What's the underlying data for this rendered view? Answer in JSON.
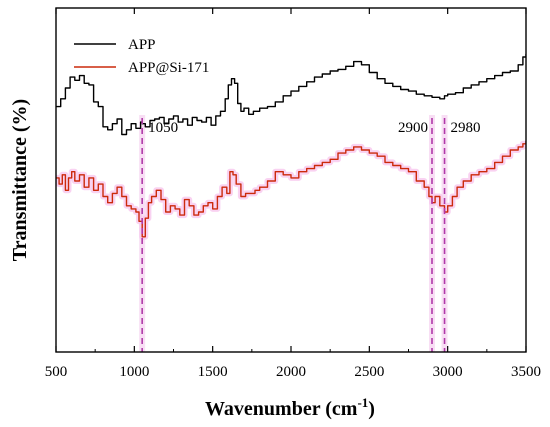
{
  "chart_data": {
    "type": "line",
    "xlabel": "Wavenumber (cm",
    "xlabel_sup": "-1",
    "xlabel_end": ")",
    "ylabel": "Transmittance (%)",
    "xlim": [
      500,
      3500
    ],
    "xticks": [
      "500",
      "1000",
      "1500",
      "2000",
      "2500",
      "3000",
      "3500"
    ],
    "y_ticks_shown": false,
    "grid": false,
    "legend_position": "top-left",
    "annotations": [
      {
        "text": "1050",
        "x": 1050
      },
      {
        "text": "2900",
        "x": 2900
      },
      {
        "text": "2980",
        "x": 2980
      }
    ],
    "series": [
      {
        "name": "APP",
        "color": "#000000",
        "x": [
          500,
          530,
          560,
          590,
          620,
          650,
          680,
          710,
          740,
          770,
          800,
          830,
          860,
          890,
          920,
          950,
          980,
          1010,
          1040,
          1050,
          1070,
          1100,
          1130,
          1160,
          1190,
          1220,
          1250,
          1280,
          1310,
          1340,
          1370,
          1400,
          1430,
          1460,
          1490,
          1520,
          1550,
          1580,
          1600,
          1620,
          1640,
          1660,
          1680,
          1700,
          1730,
          1760,
          1800,
          1850,
          1900,
          1950,
          2000,
          2050,
          2100,
          2150,
          2200,
          2250,
          2300,
          2350,
          2400,
          2450,
          2500,
          2550,
          2600,
          2650,
          2700,
          2750,
          2800,
          2850,
          2900,
          2950,
          2980,
          3000,
          3050,
          3100,
          3150,
          3200,
          3250,
          3300,
          3350,
          3400,
          3450,
          3480,
          3500
        ],
        "y": [
          28,
          33,
          40,
          47,
          45,
          48,
          43,
          42,
          31,
          28,
          15,
          13,
          17,
          20,
          10,
          13,
          17,
          14,
          18,
          17,
          15,
          19,
          20,
          21,
          17,
          20,
          22,
          18,
          20,
          16,
          21,
          19,
          18,
          21,
          16,
          22,
          25,
          33,
          42,
          46,
          43,
          30,
          25,
          27,
          23,
          25,
          27,
          28,
          31,
          35,
          38,
          41,
          44,
          47,
          49,
          51,
          52,
          54,
          57,
          55,
          50,
          46,
          43,
          41,
          39,
          38,
          36,
          35,
          34,
          33,
          35,
          36,
          37,
          40,
          42,
          44,
          46,
          48,
          50,
          51,
          55,
          60,
          62
        ]
      },
      {
        "name": "APP@Si-171",
        "color": "#cc2a0c",
        "x": [
          500,
          520,
          540,
          560,
          580,
          600,
          620,
          650,
          680,
          710,
          740,
          770,
          800,
          830,
          860,
          890,
          920,
          950,
          980,
          1010,
          1030,
          1050,
          1070,
          1090,
          1110,
          1140,
          1170,
          1200,
          1230,
          1260,
          1290,
          1320,
          1350,
          1380,
          1410,
          1440,
          1470,
          1500,
          1530,
          1560,
          1590,
          1610,
          1630,
          1650,
          1680,
          1710,
          1740,
          1770,
          1800,
          1850,
          1900,
          1950,
          2000,
          2050,
          2100,
          2150,
          2200,
          2250,
          2300,
          2350,
          2400,
          2450,
          2500,
          2550,
          2600,
          2650,
          2700,
          2750,
          2800,
          2850,
          2880,
          2900,
          2920,
          2950,
          2980,
          3000,
          3030,
          3060,
          3100,
          3150,
          3200,
          3250,
          3300,
          3350,
          3400,
          3450,
          3480,
          3500
        ],
        "y": [
          -18,
          -22,
          -16,
          -26,
          -18,
          -14,
          -20,
          -16,
          -24,
          -18,
          -26,
          -22,
          -30,
          -34,
          -28,
          -24,
          -30,
          -36,
          -38,
          -40,
          -46,
          -56,
          -44,
          -34,
          -30,
          -26,
          -32,
          -40,
          -36,
          -38,
          -42,
          -32,
          -36,
          -42,
          -40,
          -36,
          -34,
          -38,
          -30,
          -24,
          -28,
          -14,
          -16,
          -22,
          -30,
          -28,
          -28,
          -26,
          -24,
          -20,
          -14,
          -16,
          -18,
          -14,
          -12,
          -10,
          -8,
          -6,
          -2,
          0,
          2,
          0,
          -2,
          -4,
          -8,
          -10,
          -12,
          -14,
          -20,
          -24,
          -30,
          -34,
          -30,
          -36,
          -40,
          -36,
          -30,
          -24,
          -20,
          -16,
          -14,
          -12,
          -8,
          -4,
          0,
          2,
          4,
          6
        ]
      }
    ]
  }
}
